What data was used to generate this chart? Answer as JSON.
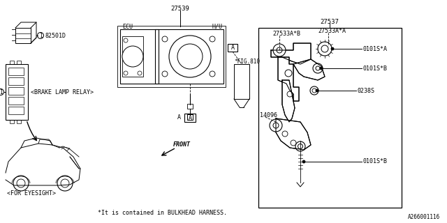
{
  "bg_color": "#ffffff",
  "line_color": "#000000",
  "text_color": "#000000",
  "footer_text": "*It is contained in BULKHEAD HARNESS.",
  "ref_number": "A266001116",
  "label_27539": "27539",
  "label_HU": "H/U",
  "label_ECU": "ECU",
  "label_fig810": "*FIG.810",
  "label_A": "A",
  "label_27537": "27537",
  "label_27533AB": "27533A*B",
  "label_27533AA": "27533A*A",
  "label_0101SA": "0101S*A",
  "label_0101SB1": "0101S*B",
  "label_0238S": "0238S",
  "label_0101SB2": "0101S*B",
  "label_14096": "14096",
  "label_FRONT": "FRONT",
  "label_82501D": "82501D",
  "label_relay": "<BRAKE LAMP RELAY>",
  "label_eyesight": "<FOR EYESIGHT>"
}
